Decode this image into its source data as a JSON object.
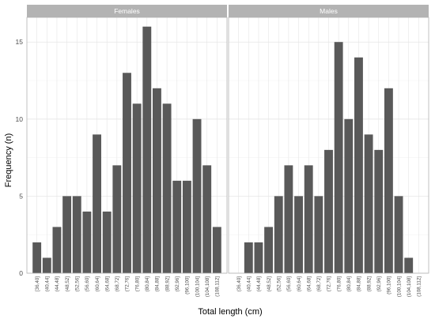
{
  "chart_data": {
    "type": "bar",
    "xlabel": "Total length (cm)",
    "ylabel": "Frequency (n)",
    "ylim": [
      0,
      16.6
    ],
    "yticks": [
      0,
      5,
      10,
      15
    ],
    "grid": true,
    "legend": "none",
    "colors": {
      "bar": "#595959",
      "strip": "#b3b3b3",
      "panel_border": "#b3b3b3",
      "grid_major": "#e5e5e5",
      "grid_minor": "#f2f2f2",
      "tick_text": "#4d4d4d"
    },
    "categories": [
      "[36,40]",
      "(40,44]",
      "(44,48]",
      "(48,52]",
      "(52,56]",
      "(56,60]",
      "(60,64]",
      "(64,68]",
      "(68,72]",
      "(72,76]",
      "(76,80]",
      "(80,84]",
      "(84,88]",
      "(88,92]",
      "(92,96]",
      "(96,100]",
      "(100,104]",
      "(104,108]",
      "(108,112]"
    ],
    "panels": [
      {
        "name": "Females",
        "categories": [
          "[36,40]",
          "(40,44]",
          "(44,48]",
          "(48,52]",
          "(52,56]",
          "(56,60]",
          "(60,64]",
          "(64,68]",
          "(68,72]",
          "(72,76]",
          "(76,80]",
          "(80,84]",
          "(84,88]",
          "(88,92]",
          "(92,96]",
          "(96,100]",
          "(100,104]",
          "(104,108]",
          "(108,112]"
        ],
        "values": [
          2,
          1,
          3,
          5,
          5,
          4,
          9,
          4,
          7,
          13,
          11,
          16,
          12,
          11,
          6,
          6,
          10,
          7,
          3
        ]
      },
      {
        "name": "Males",
        "categories": [
          "(36,40]",
          "(40,44]",
          "(44,48]",
          "(48,52]",
          "(52,56]",
          "(56,60]",
          "(60,64]",
          "(64,68]",
          "(68,72]",
          "(72,76]",
          "(76,80]",
          "(80,84]",
          "(84,88]",
          "(88,92]",
          "(92,96]",
          "(96,100]",
          "(100,104]",
          "(104,108]",
          "(108,112]"
        ],
        "values": [
          0,
          2,
          2,
          3,
          5,
          7,
          5,
          7,
          5,
          8,
          15,
          10,
          14,
          9,
          8,
          12,
          5,
          1,
          0
        ]
      }
    ]
  }
}
